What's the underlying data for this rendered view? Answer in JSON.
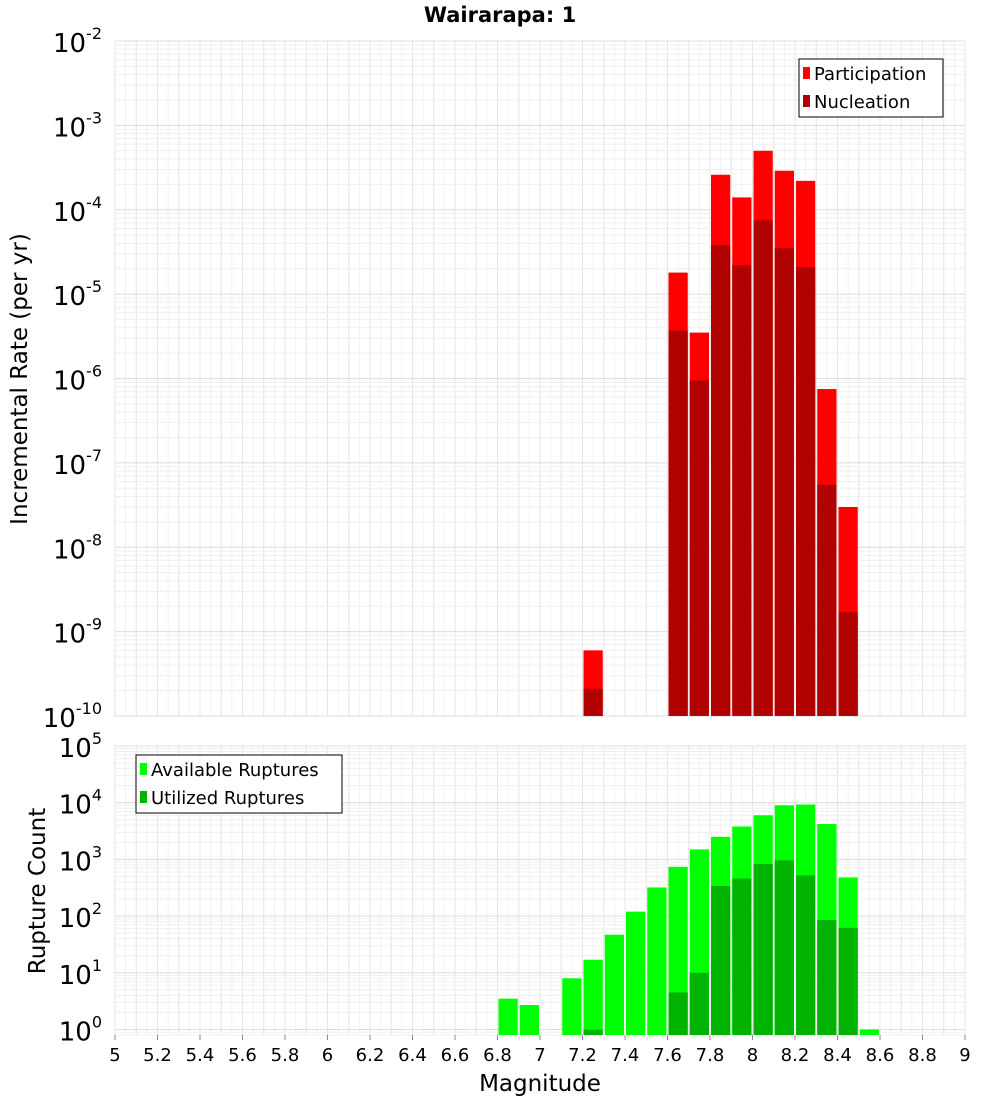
{
  "chart_data": [
    {
      "type": "bar",
      "title": "Wairarapa: 1",
      "ylabel": "Incremental Rate (per yr)",
      "yscale": "log",
      "ylim": [
        1e-10,
        0.01
      ],
      "xlim": [
        5,
        9
      ],
      "y_ticks": [
        {
          "base": "10",
          "exp": "-10",
          "value": 1e-10
        },
        {
          "base": "10",
          "exp": "-9",
          "value": 1e-09
        },
        {
          "base": "10",
          "exp": "-8",
          "value": 1e-08
        },
        {
          "base": "10",
          "exp": "-7",
          "value": 1e-07
        },
        {
          "base": "10",
          "exp": "-6",
          "value": 1e-06
        },
        {
          "base": "10",
          "exp": "-5",
          "value": 1e-05
        },
        {
          "base": "10",
          "exp": "-4",
          "value": 0.0001
        },
        {
          "base": "10",
          "exp": "-3",
          "value": 0.001
        },
        {
          "base": "10",
          "exp": "-2",
          "value": 0.01
        }
      ],
      "legend_placement": "top-right",
      "x": [
        7.25,
        7.65,
        7.75,
        7.85,
        7.95,
        8.05,
        8.15,
        8.25,
        8.35,
        8.45
      ],
      "series": [
        {
          "name": "Participation",
          "color": "#ff0000",
          "values": [
            6e-10,
            1.8e-05,
            3.5e-06,
            0.00026,
            0.00014,
            0.0005,
            0.00029,
            0.00022,
            7.5e-07,
            3e-08
          ]
        },
        {
          "name": "Nucleation",
          "color": "#b00000",
          "values": [
            2.1e-10,
            3.7e-06,
            9.5e-07,
            3.8e-05,
            2.2e-05,
            7.5e-05,
            3.5e-05,
            2.1e-05,
            5.5e-08,
            1.7e-09
          ]
        }
      ]
    },
    {
      "type": "bar",
      "title": "",
      "xlabel": "Magnitude",
      "ylabel": "Rupture Count",
      "yscale": "log",
      "ylim": [
        0.8,
        100000
      ],
      "xlim": [
        5,
        9
      ],
      "x_ticks": [
        "5",
        "5.2",
        "5.4",
        "5.6",
        "5.8",
        "6",
        "6.2",
        "6.4",
        "6.6",
        "6.8",
        "7",
        "7.2",
        "7.4",
        "7.6",
        "7.8",
        "8",
        "8.2",
        "8.4",
        "8.6",
        "8.8",
        "9"
      ],
      "y_ticks": [
        {
          "base": "10",
          "exp": "0",
          "value": 1
        },
        {
          "base": "10",
          "exp": "1",
          "value": 10
        },
        {
          "base": "10",
          "exp": "2",
          "value": 100
        },
        {
          "base": "10",
          "exp": "3",
          "value": 1000
        },
        {
          "base": "10",
          "exp": "4",
          "value": 10000
        },
        {
          "base": "10",
          "exp": "5",
          "value": 100000
        }
      ],
      "legend_placement": "top-left",
      "x": [
        6.85,
        6.95,
        7.15,
        7.25,
        7.35,
        7.45,
        7.55,
        7.65,
        7.75,
        7.85,
        7.95,
        8.05,
        8.15,
        8.25,
        8.35,
        8.45,
        8.55
      ],
      "series": [
        {
          "name": "Available Ruptures",
          "color": "#00ff00",
          "values": [
            3.5,
            2.7,
            8,
            17,
            47,
            120,
            320,
            740,
            1500,
            2500,
            3800,
            6000,
            9000,
            9300,
            4200,
            480,
            1
          ]
        },
        {
          "name": "Utilized Ruptures",
          "color": "#00b300",
          "values": [
            0,
            0,
            0,
            1,
            0,
            0,
            0,
            4.5,
            10,
            340,
            460,
            830,
            960,
            520,
            85,
            62,
            0
          ]
        }
      ]
    }
  ]
}
